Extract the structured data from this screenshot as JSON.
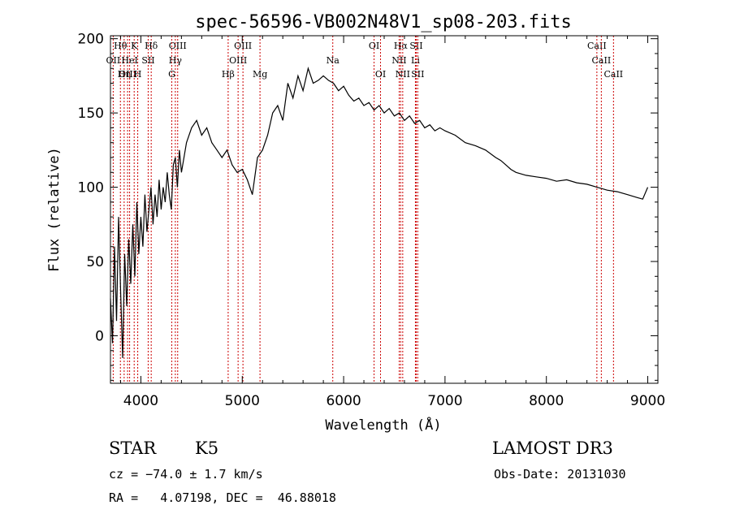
{
  "chart_data": {
    "type": "line",
    "title": "spec-56596-VB002N48V1_sp08-203.fits",
    "xlabel": "Wavelength (Å)",
    "ylabel": "Flux (relative)",
    "xlim": [
      3700,
      9100
    ],
    "ylim": [
      -32,
      202
    ],
    "xticks": [
      4000,
      5000,
      6000,
      7000,
      8000,
      9000
    ],
    "yticks": [
      0,
      50,
      100,
      150,
      200
    ],
    "colors": {
      "spectrum": "#000000",
      "lines": "#cc0000",
      "axes": "#000000"
    },
    "series": [
      {
        "name": "flux",
        "x": [
          3700,
          3720,
          3740,
          3760,
          3780,
          3800,
          3820,
          3840,
          3860,
          3880,
          3900,
          3920,
          3940,
          3960,
          3980,
          4000,
          4020,
          4040,
          4060,
          4080,
          4100,
          4120,
          4140,
          4160,
          4180,
          4200,
          4220,
          4240,
          4260,
          4280,
          4300,
          4320,
          4340,
          4360,
          4380,
          4400,
          4450,
          4500,
          4550,
          4600,
          4650,
          4700,
          4750,
          4800,
          4850,
          4900,
          4950,
          5000,
          5050,
          5100,
          5150,
          5200,
          5250,
          5300,
          5350,
          5400,
          5450,
          5500,
          5550,
          5600,
          5650,
          5700,
          5750,
          5800,
          5850,
          5900,
          5950,
          6000,
          6050,
          6100,
          6150,
          6200,
          6250,
          6300,
          6350,
          6400,
          6450,
          6500,
          6550,
          6600,
          6650,
          6700,
          6750,
          6800,
          6850,
          6900,
          6950,
          7000,
          7100,
          7200,
          7300,
          7400,
          7500,
          7550,
          7600,
          7650,
          7700,
          7800,
          7900,
          8000,
          8100,
          8200,
          8300,
          8400,
          8500,
          8600,
          8700,
          8800,
          8900,
          8950,
          9000
        ],
        "y": [
          25,
          -5,
          60,
          10,
          80,
          30,
          -15,
          55,
          20,
          65,
          35,
          75,
          40,
          90,
          55,
          80,
          60,
          95,
          70,
          85,
          100,
          75,
          95,
          80,
          105,
          85,
          100,
          90,
          110,
          95,
          85,
          115,
          120,
          100,
          125,
          110,
          130,
          140,
          145,
          135,
          140,
          130,
          125,
          120,
          125,
          115,
          110,
          112,
          105,
          95,
          120,
          125,
          135,
          150,
          155,
          145,
          170,
          160,
          175,
          165,
          180,
          170,
          172,
          175,
          172,
          170,
          165,
          168,
          162,
          158,
          160,
          155,
          157,
          152,
          155,
          150,
          153,
          148,
          150,
          145,
          148,
          143,
          145,
          140,
          142,
          138,
          140,
          138,
          135,
          130,
          128,
          125,
          120,
          118,
          115,
          112,
          110,
          108,
          107,
          106,
          104,
          105,
          103,
          102,
          100,
          98,
          97,
          95,
          93,
          92,
          100
        ]
      }
    ],
    "line_markers": [
      {
        "name": "Hθ",
        "wave": 3798,
        "row": 0
      },
      {
        "name": "OII",
        "wave": 3727,
        "row": 1
      },
      {
        "name": "OIII",
        "wave": 3869,
        "row": 2
      },
      {
        "name": "K",
        "wave": 3934,
        "row": 0
      },
      {
        "name": "H",
        "wave": 3969,
        "row": 2
      },
      {
        "name": "Hη",
        "wave": 3835,
        "row": 2
      },
      {
        "name": "HeI",
        "wave": 3889,
        "row": 1
      },
      {
        "name": "SII",
        "wave": 4072,
        "row": 1
      },
      {
        "name": "Hδ",
        "wave": 4102,
        "row": 0
      },
      {
        "name": "OIII",
        "wave": 4363,
        "row": 0
      },
      {
        "name": "Hγ",
        "wave": 4340,
        "row": 1
      },
      {
        "name": "G",
        "wave": 4305,
        "row": 2
      },
      {
        "name": "Hβ",
        "wave": 4861,
        "row": 2
      },
      {
        "name": "OIII",
        "wave": 4959,
        "row": 1
      },
      {
        "name": "OIII",
        "wave": 5007,
        "row": 0
      },
      {
        "name": "Mg",
        "wave": 5175,
        "row": 2
      },
      {
        "name": "Na",
        "wave": 5893,
        "row": 1
      },
      {
        "name": "OI",
        "wave": 6300,
        "row": 0
      },
      {
        "name": "OI",
        "wave": 6364,
        "row": 2
      },
      {
        "name": "Hα",
        "wave": 6563,
        "row": 0
      },
      {
        "name": "NII",
        "wave": 6548,
        "row": 1
      },
      {
        "name": "NII",
        "wave": 6583,
        "row": 2
      },
      {
        "name": "SII",
        "wave": 6716,
        "row": 0
      },
      {
        "name": "Li",
        "wave": 6708,
        "row": 1
      },
      {
        "name": "SII",
        "wave": 6731,
        "row": 2
      },
      {
        "name": "CaII",
        "wave": 8498,
        "row": 0
      },
      {
        "name": "CaII",
        "wave": 8542,
        "row": 1
      },
      {
        "name": "CaII",
        "wave": 8662,
        "row": 2
      }
    ]
  },
  "info": {
    "class": "STAR",
    "subclass": "K5",
    "survey": "LAMOST DR3",
    "cz": "cz = −74.0 ± 1.7 km/s",
    "obs_date": "Obs-Date: 20131030",
    "coords": "RA =   4.07198, DEC =  46.88018"
  }
}
